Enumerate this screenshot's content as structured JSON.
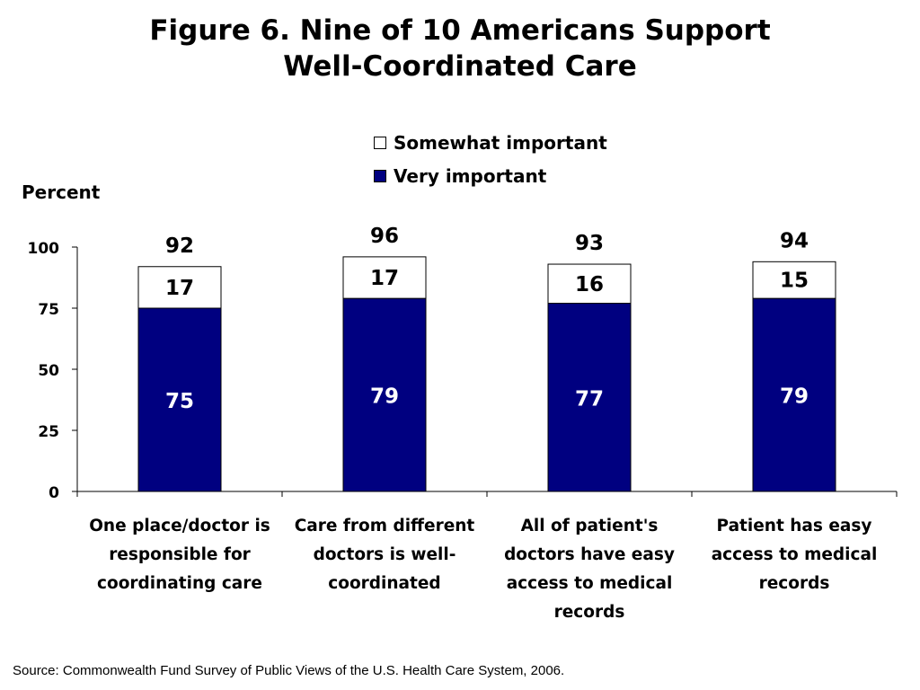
{
  "chart_data": {
    "type": "bar",
    "stacked": true,
    "title_lines": [
      "Figure 6. Nine of 10 Americans Support",
      "Well-Coordinated Care"
    ],
    "ylabel": "Percent",
    "ylim": [
      0,
      100
    ],
    "yticks": [
      "0",
      "25",
      "50",
      "75",
      "100"
    ],
    "legend_position": "top-right",
    "grid": false,
    "categories": [
      "One place/doctor is responsible for coordinating care",
      "Care from different doctors is well-coordinated",
      "All of patient's doctors have easy access to medical records",
      "Patient has easy access to medical records"
    ],
    "category_lines": [
      [
        "One place/doctor is",
        "responsible for",
        "coordinating care"
      ],
      [
        "Care from different",
        "doctors is well-",
        "coordinated"
      ],
      [
        "All of patient's",
        "doctors have easy",
        "access to medical",
        "records"
      ],
      [
        "Patient has easy",
        "access to medical",
        "records"
      ]
    ],
    "series": [
      {
        "name": "Very important",
        "values": [
          75,
          79,
          77,
          79
        ],
        "labels": [
          "75",
          "79",
          "77",
          "79"
        ],
        "color": "#000080"
      },
      {
        "name": "Somewhat important",
        "values": [
          17,
          17,
          16,
          15
        ],
        "labels": [
          "17",
          "17",
          "16",
          "15"
        ],
        "color": "#ffffff"
      }
    ],
    "totals": [
      "92",
      "96",
      "93",
      "94"
    ],
    "total_values": [
      92,
      96,
      93,
      94
    ],
    "legend_order": [
      "Somewhat important",
      "Very important"
    ]
  },
  "source": "Source: Commonwealth Fund Survey of Public Views of the U.S. Health Care System, 2006."
}
